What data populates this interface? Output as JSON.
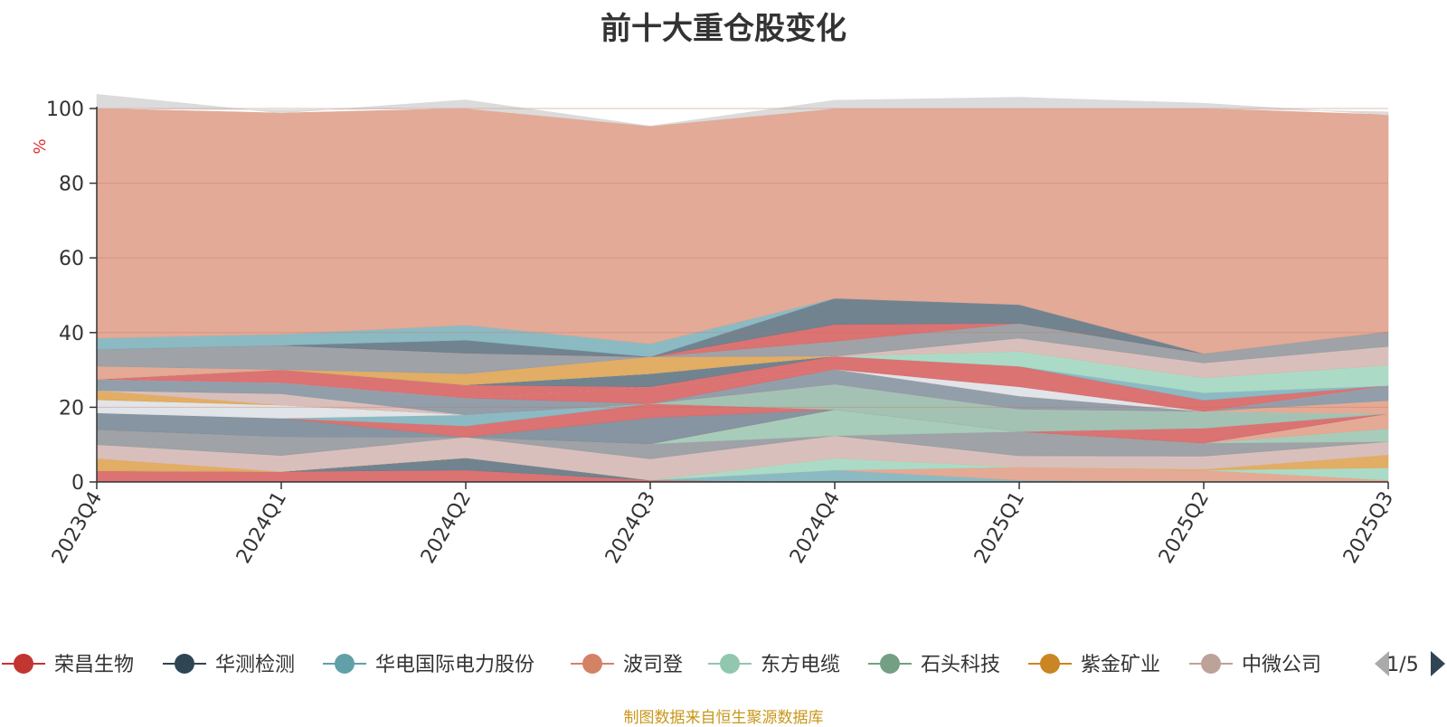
{
  "chart_data": {
    "type": "area",
    "title": "前十大重仓股变化",
    "ylabel": "%",
    "ylim": [
      0,
      100
    ],
    "y_ticks": [
      0,
      20,
      40,
      60,
      80,
      100
    ],
    "categories": [
      "2023Q4",
      "2024Q1",
      "2024Q2",
      "2024Q3",
      "2024Q4",
      "2025Q1",
      "2025Q2",
      "2025Q3"
    ],
    "grid": true,
    "stacked": true,
    "legend_position": "bottom",
    "legend_visible_names": [
      "荣昌生物",
      "华测检测",
      "华电国际电力股份",
      "波司登",
      "东方电缆",
      "石头科技",
      "紫金矿业",
      "中微公司"
    ],
    "legend_page": "1/5",
    "footer": "制图数据来自恒生聚源数据库",
    "layers": [
      {
        "color": "#d96c6c",
        "values": [
          3.0,
          2.8,
          3.2,
          0.5,
          0.0,
          0.0,
          0.0,
          0.0
        ]
      },
      {
        "color": "#6a7c8a",
        "values": [
          0.0,
          0.0,
          3.3,
          0.0,
          0.0,
          0.0,
          0.0,
          0.0
        ]
      },
      {
        "color": "#86b6c0",
        "values": [
          0.0,
          0.0,
          0.0,
          0.0,
          3.2,
          0.5,
          0.0,
          0.0
        ]
      },
      {
        "color": "#e3a58f",
        "values": [
          0.0,
          0.0,
          0.0,
          0.0,
          0.0,
          3.5,
          3.2,
          0.5
        ]
      },
      {
        "color": "#a7d9c3",
        "values": [
          0.0,
          0.0,
          0.0,
          0.0,
          3.2,
          0.0,
          0.0,
          3.3
        ]
      },
      {
        "color": "#e0a95c",
        "values": [
          3.3,
          0.0,
          0.0,
          0.0,
          0.0,
          0.0,
          0.2,
          3.5
        ]
      },
      {
        "color": "#d7bcb7",
        "values": [
          3.7,
          4.3,
          5.5,
          5.7,
          6.0,
          3.0,
          3.5,
          3.5
        ]
      },
      {
        "color": "#9a9da1",
        "values": [
          4.0,
          5.0,
          0.0,
          4.0,
          0.0,
          6.5,
          3.5,
          0.0
        ]
      },
      {
        "color": "#a3c9b6",
        "values": [
          0.0,
          0.0,
          0.0,
          0.0,
          7.0,
          0.0,
          0.0,
          3.5
        ]
      },
      {
        "color": "#e3a58f",
        "values": [
          0.0,
          0.0,
          0.0,
          0.0,
          0.0,
          0.0,
          0.0,
          4.0
        ]
      },
      {
        "color": "#7f8f9c",
        "values": [
          4.5,
          5.0,
          0.0,
          7.0,
          0.0,
          0.0,
          0.0,
          0.0
        ]
      },
      {
        "color": "#d96c6c",
        "values": [
          0.0,
          0.0,
          3.0,
          3.8,
          0.0,
          0.0,
          4.0,
          0.0
        ]
      },
      {
        "color": "#86b6c0",
        "values": [
          0.0,
          0.0,
          3.0,
          0.0,
          0.0,
          0.0,
          0.0,
          0.0
        ]
      },
      {
        "color": "#9fbfaf",
        "values": [
          0.0,
          0.0,
          0.0,
          0.0,
          6.8,
          6.0,
          4.5,
          0.0
        ]
      },
      {
        "color": "#dfe3e7",
        "values": [
          3.5,
          3.5,
          0.0,
          0.0,
          0.0,
          0.0,
          0.0,
          0.0
        ]
      },
      {
        "color": "#e3a58f",
        "values": [
          0.0,
          0.0,
          0.0,
          0.0,
          0.0,
          0.0,
          0.0,
          3.5
        ]
      },
      {
        "color": "#e0a95c",
        "values": [
          2.5,
          0.0,
          0.0,
          0.0,
          0.0,
          0.0,
          0.0,
          0.0
        ]
      },
      {
        "color": "#d7bcb7",
        "values": [
          0.0,
          3.0,
          0.0,
          0.0,
          0.0,
          0.0,
          0.0,
          0.0
        ]
      },
      {
        "color": "#8c9aa5",
        "values": [
          3.0,
          3.0,
          4.5,
          0.0,
          4.0,
          3.5,
          0.0,
          4.0
        ]
      },
      {
        "color": "#d96c6c",
        "values": [
          0.0,
          0.0,
          0.0,
          4.5,
          0.0,
          0.0,
          0.0,
          0.0
        ]
      },
      {
        "color": "#dfe3e7",
        "values": [
          0.0,
          0.0,
          0.0,
          0.0,
          0.0,
          2.5,
          0.0,
          0.0
        ]
      },
      {
        "color": "#d96c6c",
        "values": [
          0.0,
          3.5,
          3.5,
          0.0,
          3.5,
          5.5,
          3.0,
          0.0
        ]
      },
      {
        "color": "#6a7c8a",
        "values": [
          0.0,
          0.0,
          0.0,
          3.5,
          0.0,
          0.0,
          0.0,
          0.0
        ]
      },
      {
        "color": "#86b6c0",
        "values": [
          0.0,
          0.0,
          0.0,
          0.0,
          0.0,
          0.0,
          2.0,
          0.0
        ]
      },
      {
        "color": "#a7d9c3",
        "values": [
          0.0,
          0.0,
          0.0,
          0.0,
          0.0,
          4.0,
          4.0,
          5.5
        ]
      },
      {
        "color": "#e0a95c",
        "values": [
          0.0,
          0.0,
          3.0,
          4.5,
          0.0,
          0.0,
          0.0,
          0.0
        ]
      },
      {
        "color": "#e3a58f",
        "values": [
          3.5,
          0.0,
          0.0,
          0.0,
          0.0,
          0.0,
          0.0,
          0.0
        ]
      },
      {
        "color": "#d7bcb7",
        "values": [
          0.0,
          0.0,
          0.0,
          0.0,
          0.0,
          3.5,
          4.0,
          5.0
        ]
      },
      {
        "color": "#9a9da1",
        "values": [
          4.5,
          6.5,
          5.5,
          0.0,
          4.0,
          4.0,
          2.5,
          4.0
        ]
      },
      {
        "color": "#d96c6c",
        "values": [
          0.0,
          0.0,
          0.0,
          0.0,
          4.5,
          0.0,
          0.0,
          0.0
        ]
      },
      {
        "color": "#6a7c8a",
        "values": [
          0.0,
          0.0,
          3.5,
          0.0,
          7.0,
          5.0,
          0.0,
          0.0
        ]
      },
      {
        "color": "#86b6c0",
        "values": [
          3.0,
          3.0,
          4.0,
          3.5,
          0.0,
          0.0,
          0.0,
          0.0
        ]
      },
      {
        "color": "#e1a591",
        "values": [
          65.3,
          59.2,
          60.3,
          58.3,
          53.0,
          55.5,
          67.0,
          58.0
        ]
      },
      {
        "color": "#d9d9d9",
        "values": [
          0.0,
          0.8,
          0.8,
          0.0,
          0.0,
          0.0,
          0.0,
          0.8
        ]
      }
    ]
  }
}
